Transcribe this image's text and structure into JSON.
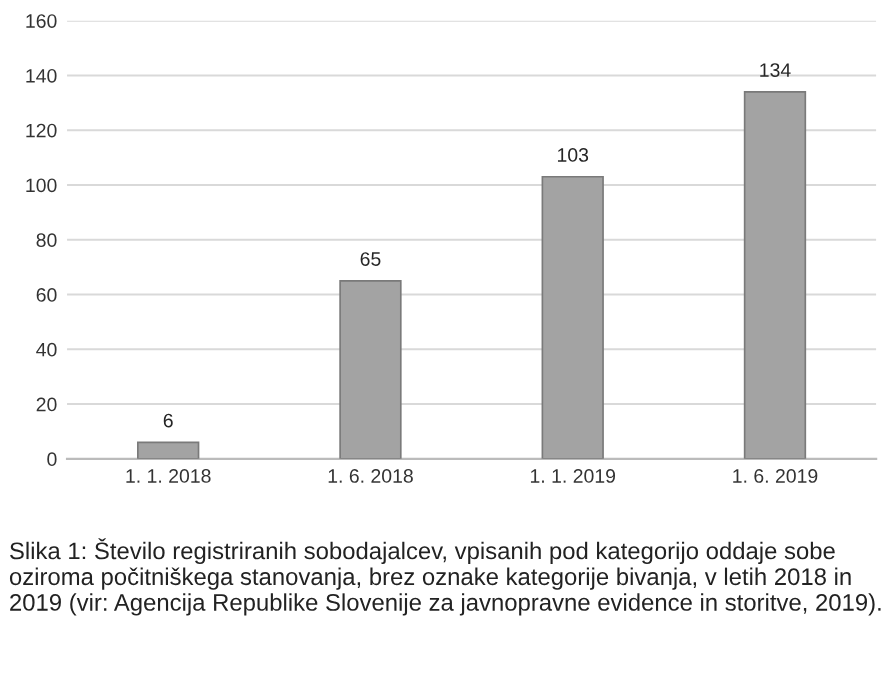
{
  "chart_data": {
    "type": "bar",
    "categories": [
      "1. 1. 2018",
      "1. 6. 2018",
      "1. 1. 2019",
      "1. 6. 2019"
    ],
    "values": [
      6,
      65,
      103,
      134
    ],
    "color": "#a3a3a3",
    "ylim": [
      0,
      160
    ],
    "yticks": [
      0,
      20,
      40,
      60,
      80,
      100,
      120,
      140,
      160
    ],
    "grid": "y",
    "data_labels": true,
    "annotations": [
      "Slika 1: Število registriranih sobodajalcev, vpisanih pod kategorijo oddaje sobe oziroma počitniškega stanovanja, brez oznake kategorije bivanja, v letih 2018 in 2019 (vir: Agencija Republike Slovenije za javnopravne evidence in storitve, 2019)."
    ]
  }
}
